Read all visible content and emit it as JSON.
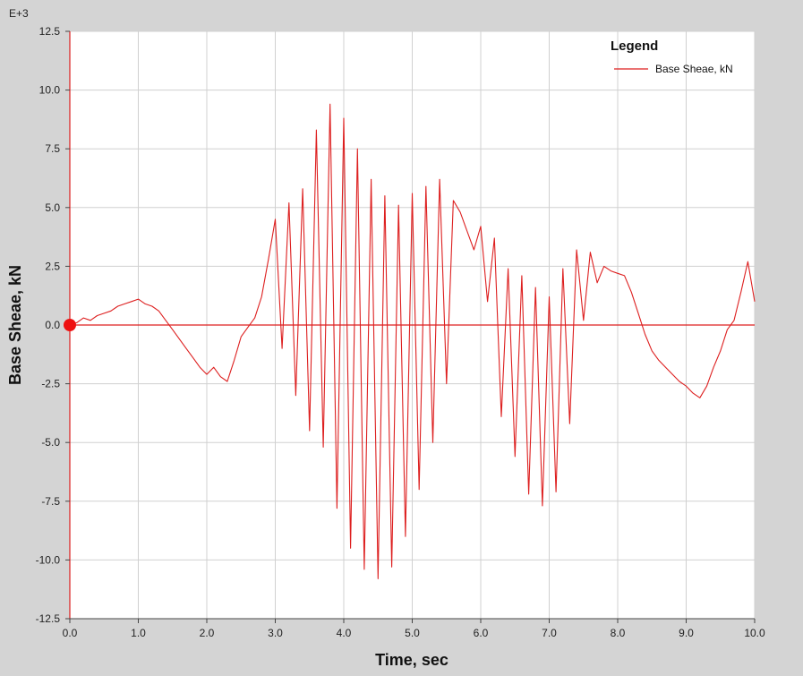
{
  "chart_data": {
    "type": "line",
    "xlabel": "Time,  sec",
    "ylabel": "Base Sheae,  kN",
    "y_multiplier": "E+3",
    "xlim": [
      0,
      10
    ],
    "ylim": [
      -12.5,
      12.5
    ],
    "x_ticks": [
      "0.0",
      "1.0",
      "2.0",
      "3.0",
      "4.0",
      "5.0",
      "6.0",
      "7.0",
      "8.0",
      "9.0",
      "10.0"
    ],
    "y_ticks": [
      "12.5",
      "10.0",
      "7.5",
      "5.0",
      "2.5",
      "0.0",
      "-2.5",
      "-5.0",
      "-7.5",
      "-10.0",
      "-12.5"
    ],
    "grid": true,
    "legend": {
      "title": "Legend",
      "placement": "top-right"
    },
    "series": [
      {
        "name": "Base Sheae, kN",
        "color": "#dd1f1f",
        "x": [
          0,
          0.1,
          0.2,
          0.3,
          0.4,
          0.5,
          0.6,
          0.7,
          0.8,
          0.9,
          1.0,
          1.1,
          1.2,
          1.3,
          1.4,
          1.5,
          1.6,
          1.7,
          1.8,
          1.9,
          2.0,
          2.1,
          2.2,
          2.3,
          2.4,
          2.5,
          2.6,
          2.7,
          2.8,
          2.9,
          3.0,
          3.1,
          3.2,
          3.3,
          3.4,
          3.5,
          3.6,
          3.7,
          3.8,
          3.9,
          4.0,
          4.1,
          4.2,
          4.3,
          4.4,
          4.5,
          4.6,
          4.7,
          4.8,
          4.9,
          5.0,
          5.1,
          5.2,
          5.3,
          5.4,
          5.5,
          5.6,
          5.7,
          5.8,
          5.9,
          6.0,
          6.1,
          6.2,
          6.3,
          6.4,
          6.5,
          6.6,
          6.7,
          6.8,
          6.9,
          7.0,
          7.1,
          7.2,
          7.3,
          7.4,
          7.5,
          7.6,
          7.7,
          7.8,
          7.9,
          8.0,
          8.1,
          8.2,
          8.3,
          8.4,
          8.5,
          8.6,
          8.7,
          8.8,
          8.9,
          9.0,
          9.1,
          9.2,
          9.3,
          9.4,
          9.5,
          9.6,
          9.7,
          9.8,
          9.9,
          10.0
        ],
        "y": [
          0,
          0.1,
          0.3,
          0.2,
          0.4,
          0.5,
          0.6,
          0.8,
          0.9,
          1.0,
          1.1,
          0.9,
          0.8,
          0.6,
          0.2,
          -0.2,
          -0.6,
          -1.0,
          -1.4,
          -1.8,
          -2.1,
          -1.8,
          -2.2,
          -2.4,
          -1.5,
          -0.5,
          -0.1,
          0.3,
          1.2,
          2.8,
          4.5,
          -1.0,
          5.2,
          -3.0,
          5.8,
          -4.5,
          8.3,
          -5.2,
          9.4,
          -7.8,
          8.8,
          -9.5,
          7.5,
          -10.4,
          6.2,
          -10.8,
          5.5,
          -10.3,
          5.1,
          -9.0,
          5.6,
          -7.0,
          5.9,
          -5.0,
          6.2,
          -2.5,
          5.3,
          4.8,
          4.0,
          3.2,
          4.2,
          1.0,
          3.7,
          -3.9,
          2.4,
          -5.6,
          2.1,
          -7.2,
          1.6,
          -7.7,
          1.2,
          -7.1,
          2.4,
          -4.2,
          3.2,
          0.2,
          3.1,
          1.8,
          2.5,
          2.3,
          2.2,
          2.1,
          1.4,
          0.5,
          -0.4,
          -1.1,
          -1.5,
          -1.8,
          -2.1,
          -2.4,
          -2.6,
          -2.9,
          -3.1,
          -2.6,
          -1.8,
          -1.1,
          -0.2,
          0.2,
          1.4,
          2.7,
          1.0
        ]
      }
    ]
  }
}
